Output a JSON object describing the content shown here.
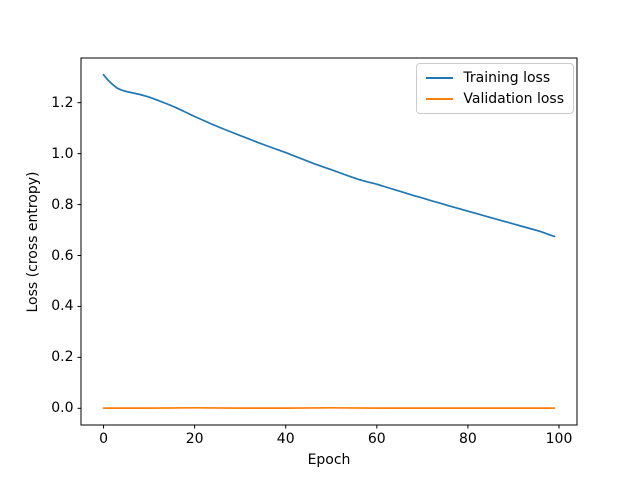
{
  "figure": {
    "background_color": "#ffffff",
    "spine_color": "#000000",
    "text_color": "#000000"
  },
  "chart_data": {
    "type": "line",
    "title": "",
    "xlabel": "Epoch",
    "ylabel": "Loss (cross entropy)",
    "grid": false,
    "xlim": [
      -4.95,
      103.95
    ],
    "ylim": [
      -0.0655,
      1.3755
    ],
    "xticks": [
      0,
      20,
      40,
      60,
      80,
      100
    ],
    "xtick_labels": [
      "0",
      "20",
      "40",
      "60",
      "80",
      "100"
    ],
    "yticks": [
      0.0,
      0.2,
      0.4,
      0.6,
      0.8,
      1.0,
      1.2
    ],
    "ytick_labels": [
      "0.0",
      "0.2",
      "0.4",
      "0.6",
      "0.8",
      "1.0",
      "1.2"
    ],
    "legend": {
      "position": "upper right",
      "entries": [
        "Training loss",
        "Validation loss"
      ]
    },
    "series": [
      {
        "name": "Training loss",
        "color": "#1f77b4",
        "x": [
          0,
          1,
          2,
          3,
          4,
          5,
          6,
          8,
          10,
          12,
          14,
          16,
          18,
          20,
          22,
          24,
          26,
          28,
          30,
          32,
          34,
          36,
          38,
          40,
          42,
          44,
          46,
          48,
          50,
          52,
          54,
          56,
          58,
          60,
          62,
          64,
          66,
          68,
          70,
          72,
          74,
          76,
          78,
          80,
          82,
          84,
          86,
          88,
          90,
          92,
          94,
          96,
          98,
          99
        ],
        "y": [
          1.31,
          1.288,
          1.271,
          1.257,
          1.249,
          1.244,
          1.24,
          1.232,
          1.222,
          1.209,
          1.195,
          1.18,
          1.163,
          1.146,
          1.13,
          1.114,
          1.099,
          1.085,
          1.071,
          1.057,
          1.043,
          1.03,
          1.017,
          1.004,
          0.99,
          0.976,
          0.962,
          0.949,
          0.937,
          0.924,
          0.911,
          0.899,
          0.889,
          0.88,
          0.869,
          0.858,
          0.847,
          0.836,
          0.826,
          0.815,
          0.805,
          0.794,
          0.784,
          0.774,
          0.764,
          0.754,
          0.744,
          0.734,
          0.724,
          0.714,
          0.704,
          0.694,
          0.681,
          0.675
        ]
      },
      {
        "name": "Validation loss",
        "color": "#ff7f0e",
        "x": [
          0,
          10,
          20,
          30,
          40,
          50,
          60,
          70,
          80,
          90,
          99
        ],
        "y": [
          0.001,
          0.001,
          0.002,
          0.001,
          0.001,
          0.002,
          0.001,
          0.001,
          0.001,
          0.001,
          0.001
        ]
      }
    ]
  }
}
